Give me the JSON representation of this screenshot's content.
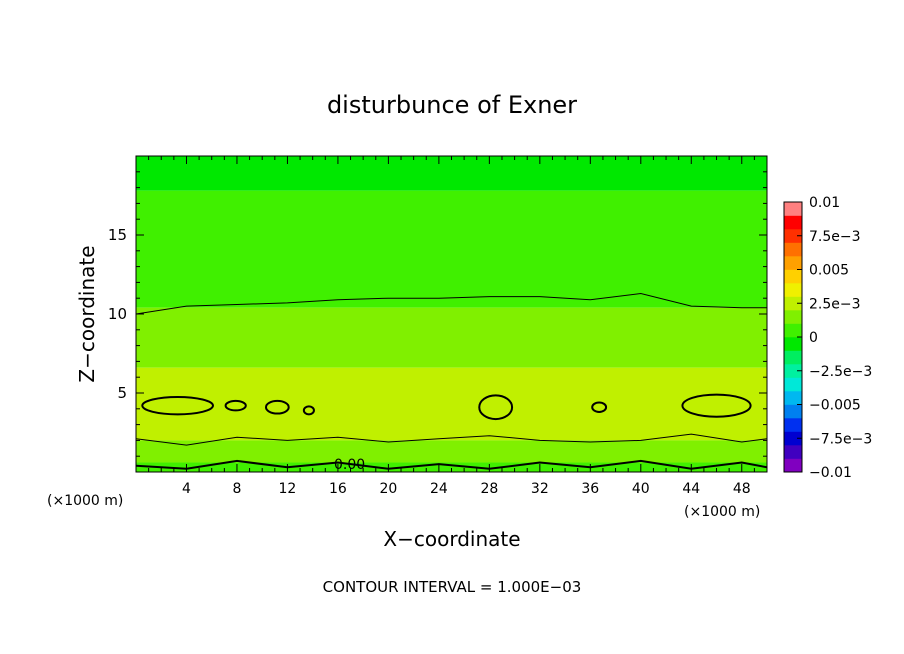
{
  "chart_data": {
    "type": "heatmap",
    "title": "disturbunce of Exner",
    "xlabel": "X−coordinate",
    "ylabel": "Z−coordinate",
    "x_unit_left": "(×1000 m)",
    "x_unit_right": "(×1000 m)",
    "footer": "CONTOUR INTERVAL = 1.000E−03",
    "xlim": [
      0,
      50
    ],
    "ylim": [
      0,
      20
    ],
    "x_ticks": [
      4,
      8,
      12,
      16,
      20,
      24,
      28,
      32,
      36,
      40,
      44,
      48
    ],
    "y_ticks": [
      5,
      10,
      15
    ],
    "contour_interval": 0.001,
    "contour_label": "0.00",
    "colorbar": {
      "min": -0.01,
      "max": 0.01,
      "tick_values": [
        0.01,
        0.0075,
        0.005,
        0.0025,
        0,
        -0.0025,
        -0.005,
        -0.0075,
        -0.01
      ],
      "tick_labels": [
        "0.01",
        "7.5e−3",
        "0.005",
        "2.5e−3",
        "0",
        "−2.5e−3",
        "−0.005",
        "−7.5e−3",
        "−0.01"
      ],
      "colors": [
        "#8000c0",
        "#4000c0",
        "#0000d0",
        "#0030f0",
        "#0080f0",
        "#00b8f0",
        "#00e8d8",
        "#00f0a0",
        "#00ee60",
        "#00e800",
        "#40f000",
        "#80f000",
        "#c0f000",
        "#f0f000",
        "#ffd000",
        "#ffa000",
        "#ff7000",
        "#ff3000",
        "#ff0000",
        "#ff8080"
      ]
    },
    "bands": [
      {
        "z_bottom": 17.8,
        "z_top": 20,
        "level_index": 9
      },
      {
        "z_bottom": 10.4,
        "z_top": 17.8,
        "level_index": 10
      },
      {
        "z_bottom": 6.6,
        "z_top": 10.4,
        "level_index": 11
      },
      {
        "z_bottom": 2.0,
        "z_top": 6.6,
        "level_index": 12
      },
      {
        "z_bottom": 0.6,
        "z_top": 2.0,
        "level_index": 11
      },
      {
        "z_bottom": 0,
        "z_top": 0.6,
        "level_index": 10
      }
    ],
    "contour_lines": [
      {
        "x": [
          0,
          4,
          8,
          12,
          16,
          20,
          24,
          28,
          32,
          36,
          40,
          44,
          48,
          50
        ],
        "z": [
          10.0,
          10.5,
          10.6,
          10.7,
          10.9,
          11.0,
          11.0,
          11.1,
          11.1,
          10.9,
          11.3,
          10.5,
          10.4,
          10.4
        ]
      },
      {
        "x": [
          0,
          4,
          8,
          12,
          16,
          20,
          24,
          28,
          32,
          36,
          40,
          44,
          48,
          50
        ],
        "z": [
          2.1,
          1.7,
          2.2,
          2.0,
          2.2,
          1.9,
          2.1,
          2.3,
          2.0,
          1.9,
          2.0,
          2.4,
          1.9,
          2.1
        ]
      },
      {
        "x": [
          0,
          4,
          8,
          12,
          16,
          20,
          24,
          28,
          32,
          36,
          40,
          44,
          48,
          50
        ],
        "z": [
          0.4,
          0.2,
          0.7,
          0.3,
          0.6,
          0.2,
          0.5,
          0.2,
          0.6,
          0.3,
          0.7,
          0.2,
          0.6,
          0.3
        ]
      }
    ],
    "contour_loops": [
      {
        "cx": 3.3,
        "cz": 4.2,
        "rx": 2.8,
        "rz": 0.55
      },
      {
        "cx": 7.9,
        "cz": 4.2,
        "rx": 0.8,
        "rz": 0.3
      },
      {
        "cx": 11.2,
        "cz": 4.1,
        "rx": 0.9,
        "rz": 0.4
      },
      {
        "cx": 13.7,
        "cz": 3.9,
        "rx": 0.4,
        "rz": 0.25
      },
      {
        "cx": 28.5,
        "cz": 4.1,
        "rx": 1.3,
        "rz": 0.75
      },
      {
        "cx": 36.7,
        "cz": 4.1,
        "rx": 0.55,
        "rz": 0.3
      },
      {
        "cx": 46.0,
        "cz": 4.2,
        "rx": 2.7,
        "rz": 0.7
      }
    ]
  }
}
